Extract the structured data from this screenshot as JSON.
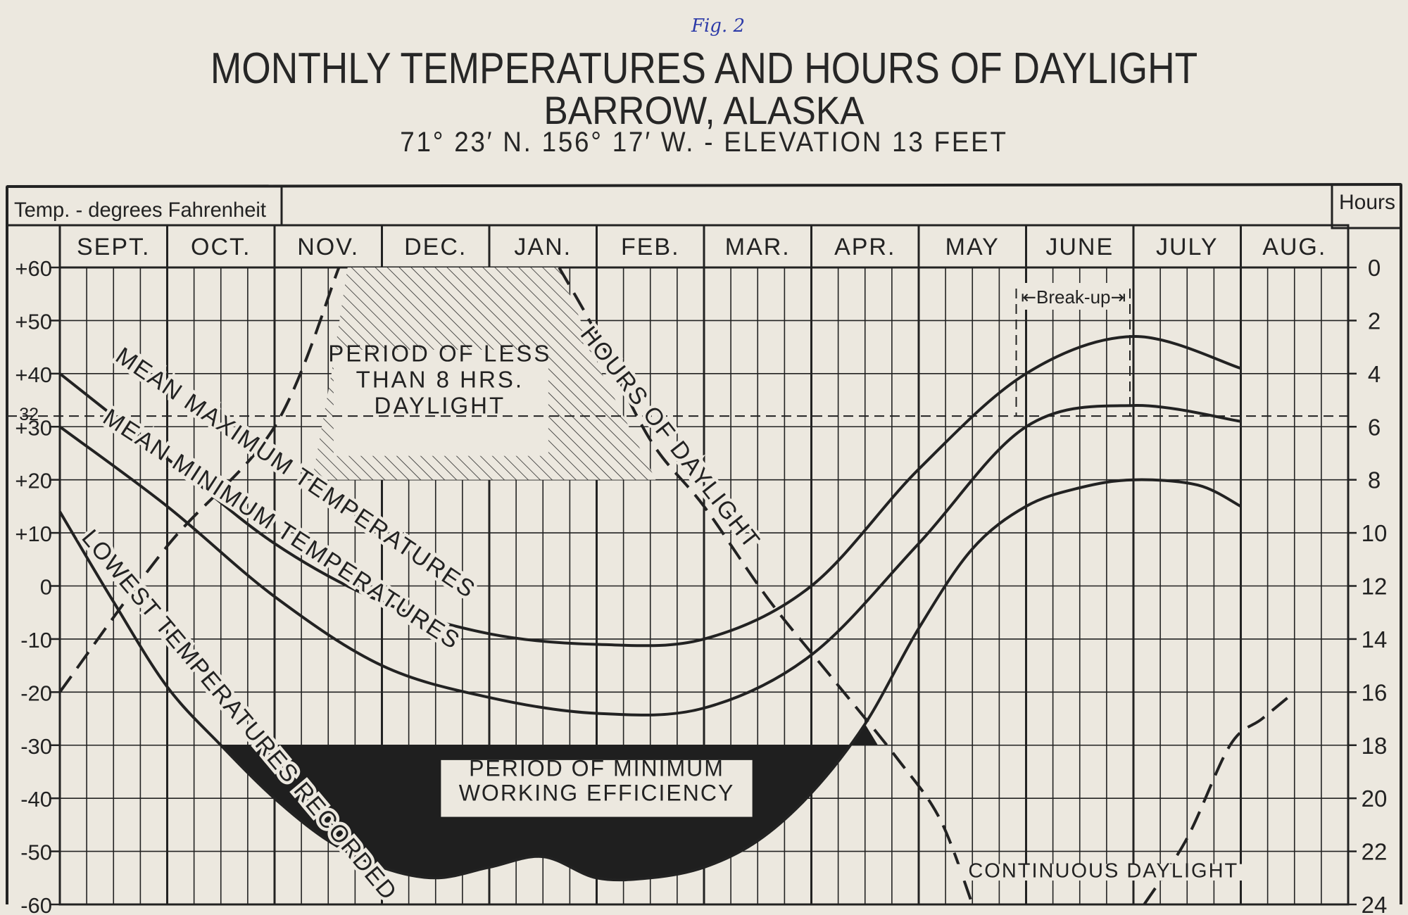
{
  "figure_label": "Fig. 2",
  "title_line1": "MONTHLY TEMPERATURES AND HOURS OF DAYLIGHT",
  "title_line2": "BARROW, ALASKA",
  "title_line3": "71° 23′ N.  156° 17′ W.  -  ELEVATION 13 FEET",
  "chart_data": {
    "type": "line",
    "months": [
      "SEPT.",
      "OCT.",
      "NOV.",
      "DEC.",
      "JAN.",
      "FEB.",
      "MAR.",
      "APR.",
      "MAY",
      "JUNE",
      "JULY",
      "AUG."
    ],
    "left_axis": {
      "label": "Temp. - degrees Fahrenheit",
      "range": [
        -60,
        60
      ],
      "ticks": [
        60,
        50,
        40,
        30,
        20,
        10,
        0,
        -10,
        -20,
        -30,
        -40,
        -50,
        -60
      ],
      "tick_labels": [
        "+60",
        "+50",
        "+40",
        "+30",
        "+20",
        "+10",
        "0",
        "-10",
        "-20",
        "-30",
        "-40",
        "-50",
        "-60"
      ],
      "extra_tick": {
        "value": 32,
        "label": "32"
      }
    },
    "right_axis": {
      "label": "Hours",
      "range": [
        0,
        24
      ],
      "inverted": true,
      "ticks": [
        0,
        2,
        4,
        6,
        8,
        10,
        12,
        14,
        16,
        18,
        20,
        22,
        24
      ],
      "tick_labels": [
        "0",
        "2",
        "4",
        "6",
        "8",
        "10",
        "12",
        "14",
        "16",
        "18",
        "20",
        "22",
        "24"
      ]
    },
    "series": [
      {
        "name": "MEAN MAXIMUM TEMPERATURES",
        "axis": "left",
        "style": "solid",
        "points": [
          [
            0,
            40
          ],
          [
            1,
            24
          ],
          [
            2,
            8
          ],
          [
            3,
            -3
          ],
          [
            4,
            -9
          ],
          [
            5,
            -11
          ],
          [
            6,
            -10
          ],
          [
            7,
            0
          ],
          [
            8,
            22
          ],
          [
            9,
            40
          ],
          [
            10,
            47
          ],
          [
            11,
            41
          ]
        ]
      },
      {
        "name": "MEAN MINIMUM TEMPERATURES",
        "axis": "left",
        "style": "solid",
        "points": [
          [
            0,
            30
          ],
          [
            1,
            15
          ],
          [
            2,
            -2
          ],
          [
            3,
            -15
          ],
          [
            4,
            -21
          ],
          [
            5,
            -24
          ],
          [
            6,
            -23
          ],
          [
            7,
            -13
          ],
          [
            8,
            8
          ],
          [
            9,
            30
          ],
          [
            10,
            34
          ],
          [
            11,
            31
          ]
        ]
      },
      {
        "name": "LOWEST TEMPERATURES RECORDED",
        "axis": "left",
        "style": "solid",
        "points": [
          [
            0,
            14
          ],
          [
            0.5,
            -3
          ],
          [
            1,
            -19
          ],
          [
            1.5,
            -30
          ],
          [
            2,
            -40
          ],
          [
            2.5,
            -48
          ],
          [
            3,
            -53
          ],
          [
            3.5,
            -55
          ],
          [
            4,
            -53
          ],
          [
            4.5,
            -51
          ],
          [
            5,
            -55
          ],
          [
            5.5,
            -55
          ],
          [
            6,
            -53
          ],
          [
            6.5,
            -48
          ],
          [
            7,
            -39
          ],
          [
            7.5,
            -26
          ],
          [
            8,
            -8
          ],
          [
            8.5,
            7
          ],
          [
            9,
            15
          ],
          [
            9.5,
            18.5
          ],
          [
            10,
            20
          ],
          [
            10.6,
            19
          ],
          [
            11,
            15
          ]
        ]
      },
      {
        "name": "HOURS OF DAYLIGHT",
        "axis": "right",
        "style": "dashed",
        "points": [
          [
            0,
            16
          ],
          [
            1,
            10.5
          ],
          [
            2,
            6
          ],
          [
            2.6,
            0
          ]
        ],
        "label_on_chart": false
      },
      {
        "name": "HOURS OF DAYLIGHT",
        "axis": "right",
        "style": "dashed",
        "points": [
          [
            4.65,
            0
          ],
          [
            5.0,
            2.5
          ],
          [
            5.5,
            6.5
          ],
          [
            6,
            9
          ],
          [
            6.6,
            12.5
          ],
          [
            7.2,
            15.5
          ],
          [
            7.8,
            18.5
          ],
          [
            8.2,
            20.8
          ],
          [
            8.5,
            24
          ]
        ]
      },
      {
        "name": "continuous-daylight-end",
        "axis": "right",
        "style": "dashed",
        "points": [
          [
            10.1,
            24
          ],
          [
            10.5,
            21.5
          ],
          [
            10.9,
            18
          ],
          [
            11.2,
            17
          ],
          [
            11.5,
            16
          ]
        ]
      }
    ],
    "freezing_line": {
      "value": 32,
      "style": "dashed"
    },
    "annotations": {
      "less_than_8hrs": {
        "text_lines": [
          "PERIOD OF LESS",
          "THAN 8 HRS.",
          "DAYLIGHT"
        ],
        "x_range": [
          2.6,
          4.65
        ],
        "temp_range": [
          20,
          60
        ]
      },
      "min_efficiency": {
        "text_lines": [
          "PERIOD OF MINIMUM",
          "WORKING EFFICIENCY"
        ],
        "below_temp": -30,
        "x_range": [
          1.5,
          7.6
        ]
      },
      "break_up": {
        "text": "Break-up",
        "x_range": [
          9.0,
          10.0
        ]
      },
      "continuous_daylight": {
        "text": "CONTINUOUS DAYLIGHT"
      },
      "hours_of_daylight_label": "HOURS OF DAYLIGHT",
      "mean_max_label": "MEAN MAXIMUM TEMPERATURES",
      "mean_min_label": "MEAN MINIMUM TEMPERATURES",
      "lowest_label": "LOWEST TEMPERATURES RECORDED"
    }
  }
}
